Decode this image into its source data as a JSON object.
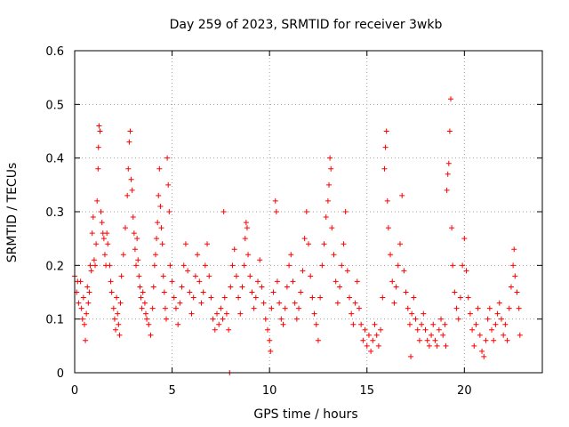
{
  "chart_data": {
    "type": "scatter",
    "title": "Day 259 of 2023, SRMTID for receiver 3wkb",
    "xlabel": "GPS time / hours",
    "ylabel": "SRMTID / TECUs",
    "xlim": [
      0,
      24
    ],
    "ylim": [
      0,
      0.6
    ],
    "x_ticks": [
      0,
      5,
      10,
      15,
      20
    ],
    "x_tick_labels": [
      "0",
      "5",
      "10",
      "15",
      "20"
    ],
    "y_ticks": [
      0,
      0.1,
      0.2,
      0.3,
      0.4,
      0.5,
      0.6
    ],
    "y_tick_labels": [
      "0",
      "0.1",
      "0.2",
      "0.3",
      "0.4",
      "0.5",
      "0.6"
    ],
    "grid": true,
    "marker": "+",
    "marker_color": "#ff0000",
    "series": [
      {
        "name": "SRMTID",
        "points": [
          [
            0.0,
            0.18
          ],
          [
            0.1,
            0.15
          ],
          [
            0.15,
            0.17
          ],
          [
            0.2,
            0.13
          ],
          [
            0.3,
            0.17
          ],
          [
            0.35,
            0.12
          ],
          [
            0.4,
            0.1
          ],
          [
            0.45,
            0.14
          ],
          [
            0.5,
            0.09
          ],
          [
            0.55,
            0.06
          ],
          [
            0.6,
            0.11
          ],
          [
            0.65,
            0.16
          ],
          [
            0.7,
            0.13
          ],
          [
            0.75,
            0.15
          ],
          [
            0.8,
            0.2
          ],
          [
            0.85,
            0.19
          ],
          [
            0.9,
            0.26
          ],
          [
            0.95,
            0.29
          ],
          [
            1.0,
            0.21
          ],
          [
            1.05,
            0.2
          ],
          [
            1.1,
            0.24
          ],
          [
            1.15,
            0.32
          ],
          [
            1.2,
            0.38
          ],
          [
            1.22,
            0.42
          ],
          [
            1.25,
            0.46
          ],
          [
            1.3,
            0.45
          ],
          [
            1.35,
            0.3
          ],
          [
            1.4,
            0.28
          ],
          [
            1.45,
            0.26
          ],
          [
            1.5,
            0.25
          ],
          [
            1.55,
            0.22
          ],
          [
            1.6,
            0.2
          ],
          [
            1.65,
            0.26
          ],
          [
            1.7,
            0.24
          ],
          [
            1.8,
            0.2
          ],
          [
            1.85,
            0.17
          ],
          [
            1.9,
            0.15
          ],
          [
            2.0,
            0.12
          ],
          [
            2.05,
            0.1
          ],
          [
            2.1,
            0.08
          ],
          [
            2.15,
            0.14
          ],
          [
            2.2,
            0.11
          ],
          [
            2.25,
            0.09
          ],
          [
            2.3,
            0.07
          ],
          [
            2.35,
            0.13
          ],
          [
            2.4,
            0.18
          ],
          [
            2.5,
            0.22
          ],
          [
            2.6,
            0.27
          ],
          [
            2.7,
            0.33
          ],
          [
            2.75,
            0.38
          ],
          [
            2.8,
            0.43
          ],
          [
            2.85,
            0.45
          ],
          [
            2.9,
            0.36
          ],
          [
            2.95,
            0.34
          ],
          [
            3.0,
            0.29
          ],
          [
            3.05,
            0.26
          ],
          [
            3.1,
            0.23
          ],
          [
            3.15,
            0.2
          ],
          [
            3.2,
            0.25
          ],
          [
            3.25,
            0.21
          ],
          [
            3.3,
            0.18
          ],
          [
            3.35,
            0.16
          ],
          [
            3.4,
            0.14
          ],
          [
            3.45,
            0.12
          ],
          [
            3.5,
            0.15
          ],
          [
            3.6,
            0.13
          ],
          [
            3.65,
            0.11
          ],
          [
            3.7,
            0.1
          ],
          [
            3.8,
            0.09
          ],
          [
            3.9,
            0.07
          ],
          [
            4.0,
            0.12
          ],
          [
            4.05,
            0.16
          ],
          [
            4.1,
            0.2
          ],
          [
            4.15,
            0.22
          ],
          [
            4.2,
            0.25
          ],
          [
            4.25,
            0.28
          ],
          [
            4.3,
            0.33
          ],
          [
            4.35,
            0.38
          ],
          [
            4.4,
            0.31
          ],
          [
            4.45,
            0.27
          ],
          [
            4.5,
            0.24
          ],
          [
            4.55,
            0.18
          ],
          [
            4.6,
            0.15
          ],
          [
            4.65,
            0.12
          ],
          [
            4.7,
            0.1
          ],
          [
            4.75,
            0.4
          ],
          [
            4.8,
            0.35
          ],
          [
            4.85,
            0.3
          ],
          [
            4.9,
            0.2
          ],
          [
            5.0,
            0.17
          ],
          [
            5.1,
            0.14
          ],
          [
            5.2,
            0.12
          ],
          [
            5.3,
            0.09
          ],
          [
            5.4,
            0.13
          ],
          [
            5.5,
            0.16
          ],
          [
            5.6,
            0.2
          ],
          [
            5.7,
            0.24
          ],
          [
            5.8,
            0.19
          ],
          [
            5.9,
            0.15
          ],
          [
            6.0,
            0.11
          ],
          [
            6.1,
            0.14
          ],
          [
            6.2,
            0.18
          ],
          [
            6.3,
            0.22
          ],
          [
            6.4,
            0.17
          ],
          [
            6.5,
            0.13
          ],
          [
            6.6,
            0.15
          ],
          [
            6.7,
            0.2
          ],
          [
            6.8,
            0.24
          ],
          [
            6.9,
            0.18
          ],
          [
            7.0,
            0.14
          ],
          [
            7.1,
            0.1
          ],
          [
            7.2,
            0.08
          ],
          [
            7.3,
            0.11
          ],
          [
            7.4,
            0.09
          ],
          [
            7.5,
            0.12
          ],
          [
            7.6,
            0.1
          ],
          [
            7.65,
            0.3
          ],
          [
            7.7,
            0.14
          ],
          [
            7.8,
            0.11
          ],
          [
            7.9,
            0.08
          ],
          [
            7.95,
            0.0
          ],
          [
            8.0,
            0.16
          ],
          [
            8.1,
            0.2
          ],
          [
            8.2,
            0.23
          ],
          [
            8.3,
            0.18
          ],
          [
            8.4,
            0.14
          ],
          [
            8.5,
            0.11
          ],
          [
            8.6,
            0.16
          ],
          [
            8.7,
            0.2
          ],
          [
            8.75,
            0.25
          ],
          [
            8.8,
            0.28
          ],
          [
            8.85,
            0.27
          ],
          [
            8.9,
            0.22
          ],
          [
            9.0,
            0.18
          ],
          [
            9.1,
            0.15
          ],
          [
            9.2,
            0.12
          ],
          [
            9.3,
            0.14
          ],
          [
            9.4,
            0.17
          ],
          [
            9.5,
            0.21
          ],
          [
            9.6,
            0.16
          ],
          [
            9.7,
            0.13
          ],
          [
            9.8,
            0.1
          ],
          [
            9.9,
            0.08
          ],
          [
            10.0,
            0.06
          ],
          [
            10.05,
            0.04
          ],
          [
            10.1,
            0.12
          ],
          [
            10.2,
            0.15
          ],
          [
            10.3,
            0.32
          ],
          [
            10.35,
            0.3
          ],
          [
            10.4,
            0.17
          ],
          [
            10.5,
            0.13
          ],
          [
            10.6,
            0.1
          ],
          [
            10.7,
            0.09
          ],
          [
            10.8,
            0.12
          ],
          [
            10.9,
            0.16
          ],
          [
            11.0,
            0.2
          ],
          [
            11.1,
            0.22
          ],
          [
            11.2,
            0.17
          ],
          [
            11.3,
            0.13
          ],
          [
            11.4,
            0.1
          ],
          [
            11.5,
            0.12
          ],
          [
            11.6,
            0.15
          ],
          [
            11.7,
            0.19
          ],
          [
            11.8,
            0.25
          ],
          [
            11.9,
            0.3
          ],
          [
            12.0,
            0.24
          ],
          [
            12.1,
            0.18
          ],
          [
            12.2,
            0.14
          ],
          [
            12.3,
            0.11
          ],
          [
            12.4,
            0.09
          ],
          [
            12.5,
            0.06
          ],
          [
            12.6,
            0.14
          ],
          [
            12.7,
            0.2
          ],
          [
            12.8,
            0.24
          ],
          [
            12.9,
            0.29
          ],
          [
            13.0,
            0.32
          ],
          [
            13.05,
            0.35
          ],
          [
            13.1,
            0.4
          ],
          [
            13.15,
            0.38
          ],
          [
            13.2,
            0.27
          ],
          [
            13.3,
            0.22
          ],
          [
            13.4,
            0.17
          ],
          [
            13.5,
            0.13
          ],
          [
            13.6,
            0.16
          ],
          [
            13.7,
            0.2
          ],
          [
            13.8,
            0.24
          ],
          [
            13.9,
            0.3
          ],
          [
            14.0,
            0.19
          ],
          [
            14.1,
            0.14
          ],
          [
            14.2,
            0.11
          ],
          [
            14.3,
            0.09
          ],
          [
            14.4,
            0.13
          ],
          [
            14.5,
            0.17
          ],
          [
            14.6,
            0.12
          ],
          [
            14.7,
            0.09
          ],
          [
            14.8,
            0.06
          ],
          [
            14.9,
            0.08
          ],
          [
            15.0,
            0.05
          ],
          [
            15.1,
            0.07
          ],
          [
            15.2,
            0.04
          ],
          [
            15.3,
            0.06
          ],
          [
            15.4,
            0.09
          ],
          [
            15.5,
            0.07
          ],
          [
            15.6,
            0.05
          ],
          [
            15.7,
            0.08
          ],
          [
            15.8,
            0.14
          ],
          [
            15.9,
            0.38
          ],
          [
            15.95,
            0.42
          ],
          [
            16.0,
            0.45
          ],
          [
            16.05,
            0.32
          ],
          [
            16.1,
            0.27
          ],
          [
            16.2,
            0.22
          ],
          [
            16.3,
            0.17
          ],
          [
            16.4,
            0.13
          ],
          [
            16.5,
            0.16
          ],
          [
            16.6,
            0.2
          ],
          [
            16.7,
            0.24
          ],
          [
            16.8,
            0.33
          ],
          [
            16.9,
            0.19
          ],
          [
            17.0,
            0.15
          ],
          [
            17.1,
            0.12
          ],
          [
            17.2,
            0.09
          ],
          [
            17.25,
            0.03
          ],
          [
            17.3,
            0.11
          ],
          [
            17.4,
            0.14
          ],
          [
            17.5,
            0.1
          ],
          [
            17.6,
            0.08
          ],
          [
            17.7,
            0.06
          ],
          [
            17.8,
            0.09
          ],
          [
            17.9,
            0.11
          ],
          [
            18.0,
            0.08
          ],
          [
            18.1,
            0.06
          ],
          [
            18.2,
            0.05
          ],
          [
            18.3,
            0.07
          ],
          [
            18.4,
            0.09
          ],
          [
            18.5,
            0.06
          ],
          [
            18.6,
            0.05
          ],
          [
            18.7,
            0.08
          ],
          [
            18.8,
            0.1
          ],
          [
            18.9,
            0.07
          ],
          [
            19.0,
            0.09
          ],
          [
            19.05,
            0.05
          ],
          [
            19.1,
            0.34
          ],
          [
            19.15,
            0.37
          ],
          [
            19.2,
            0.39
          ],
          [
            19.25,
            0.45
          ],
          [
            19.3,
            0.51
          ],
          [
            19.35,
            0.27
          ],
          [
            19.4,
            0.2
          ],
          [
            19.5,
            0.15
          ],
          [
            19.6,
            0.12
          ],
          [
            19.7,
            0.1
          ],
          [
            19.8,
            0.14
          ],
          [
            19.9,
            0.2
          ],
          [
            20.0,
            0.25
          ],
          [
            20.1,
            0.19
          ],
          [
            20.2,
            0.14
          ],
          [
            20.3,
            0.11
          ],
          [
            20.4,
            0.08
          ],
          [
            20.5,
            0.05
          ],
          [
            20.6,
            0.09
          ],
          [
            20.7,
            0.12
          ],
          [
            20.8,
            0.07
          ],
          [
            20.9,
            0.04
          ],
          [
            21.0,
            0.03
          ],
          [
            21.1,
            0.06
          ],
          [
            21.2,
            0.1
          ],
          [
            21.3,
            0.12
          ],
          [
            21.4,
            0.08
          ],
          [
            21.5,
            0.06
          ],
          [
            21.6,
            0.09
          ],
          [
            21.7,
            0.11
          ],
          [
            21.8,
            0.13
          ],
          [
            21.9,
            0.1
          ],
          [
            22.0,
            0.07
          ],
          [
            22.1,
            0.09
          ],
          [
            22.2,
            0.06
          ],
          [
            22.3,
            0.12
          ],
          [
            22.4,
            0.16
          ],
          [
            22.5,
            0.2
          ],
          [
            22.55,
            0.23
          ],
          [
            22.6,
            0.18
          ],
          [
            22.7,
            0.15
          ],
          [
            22.8,
            0.12
          ],
          [
            22.85,
            0.07
          ]
        ]
      }
    ]
  }
}
